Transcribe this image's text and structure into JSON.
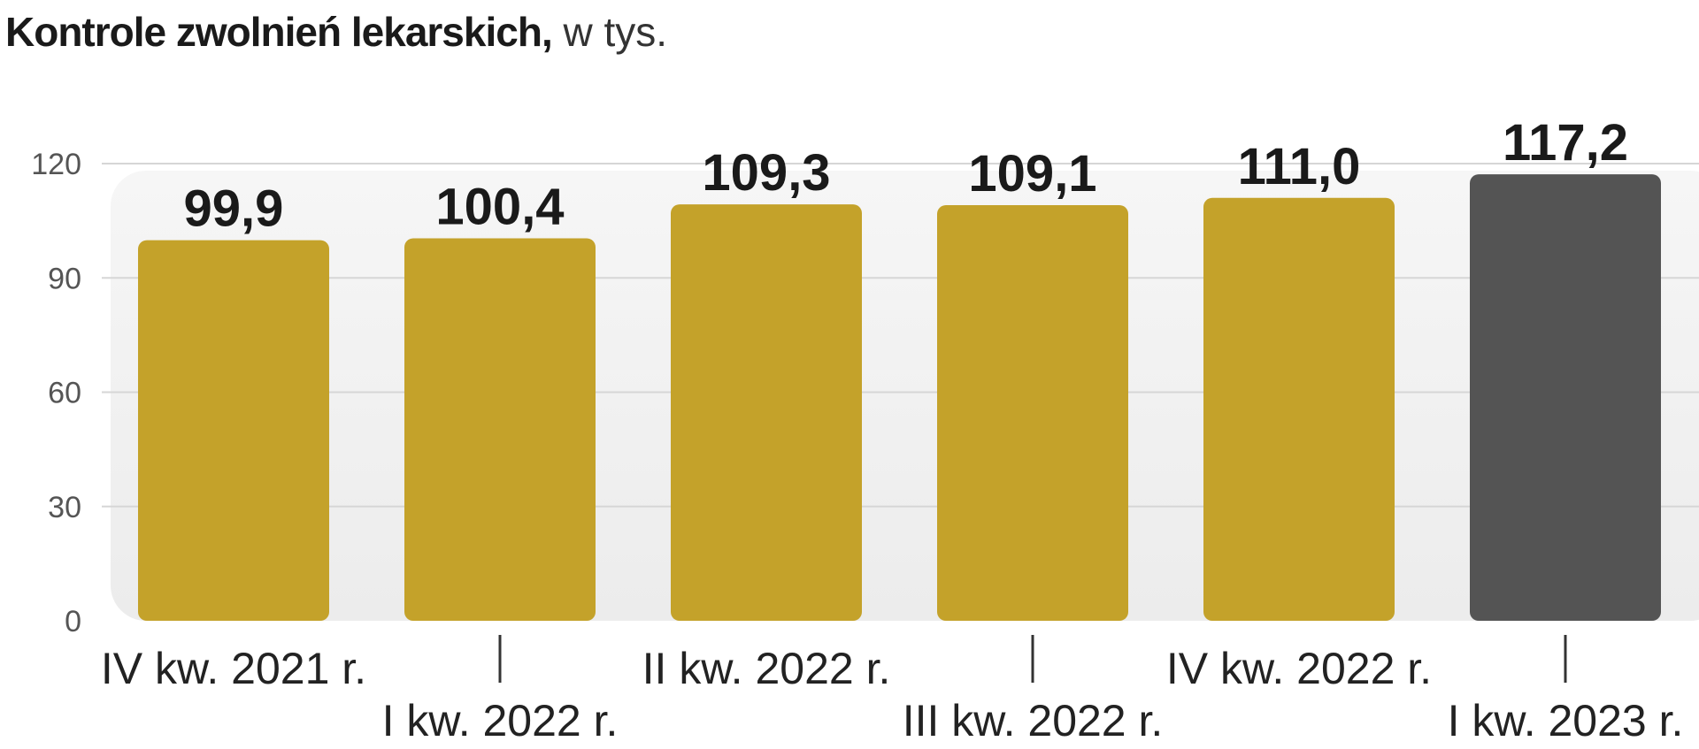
{
  "title": {
    "main": "Kontrole zwolnień lekarskich,",
    "unit": " w tys."
  },
  "chart_data": {
    "type": "bar",
    "categories": [
      "IV kw. 2021 r.",
      "I kw. 2022 r.",
      "II kw. 2022 r.",
      "III kw. 2022 r.",
      "IV kw. 2022 r.",
      "I kw. 2023 r."
    ],
    "values": [
      99.9,
      100.4,
      109.3,
      109.1,
      111.0,
      117.2
    ],
    "value_labels": [
      "99,9",
      "100,4",
      "109,3",
      "109,1",
      "111,0",
      "117,2"
    ],
    "yticks": [
      0,
      30,
      60,
      90,
      120
    ],
    "ylim": [
      0,
      120
    ],
    "grid": true,
    "colors": {
      "bar": "#c4a22a",
      "highlight_bar": "#545454",
      "background": "#f0f0f0",
      "gridline": "#d6d6d6"
    },
    "highlight_index": 5
  }
}
